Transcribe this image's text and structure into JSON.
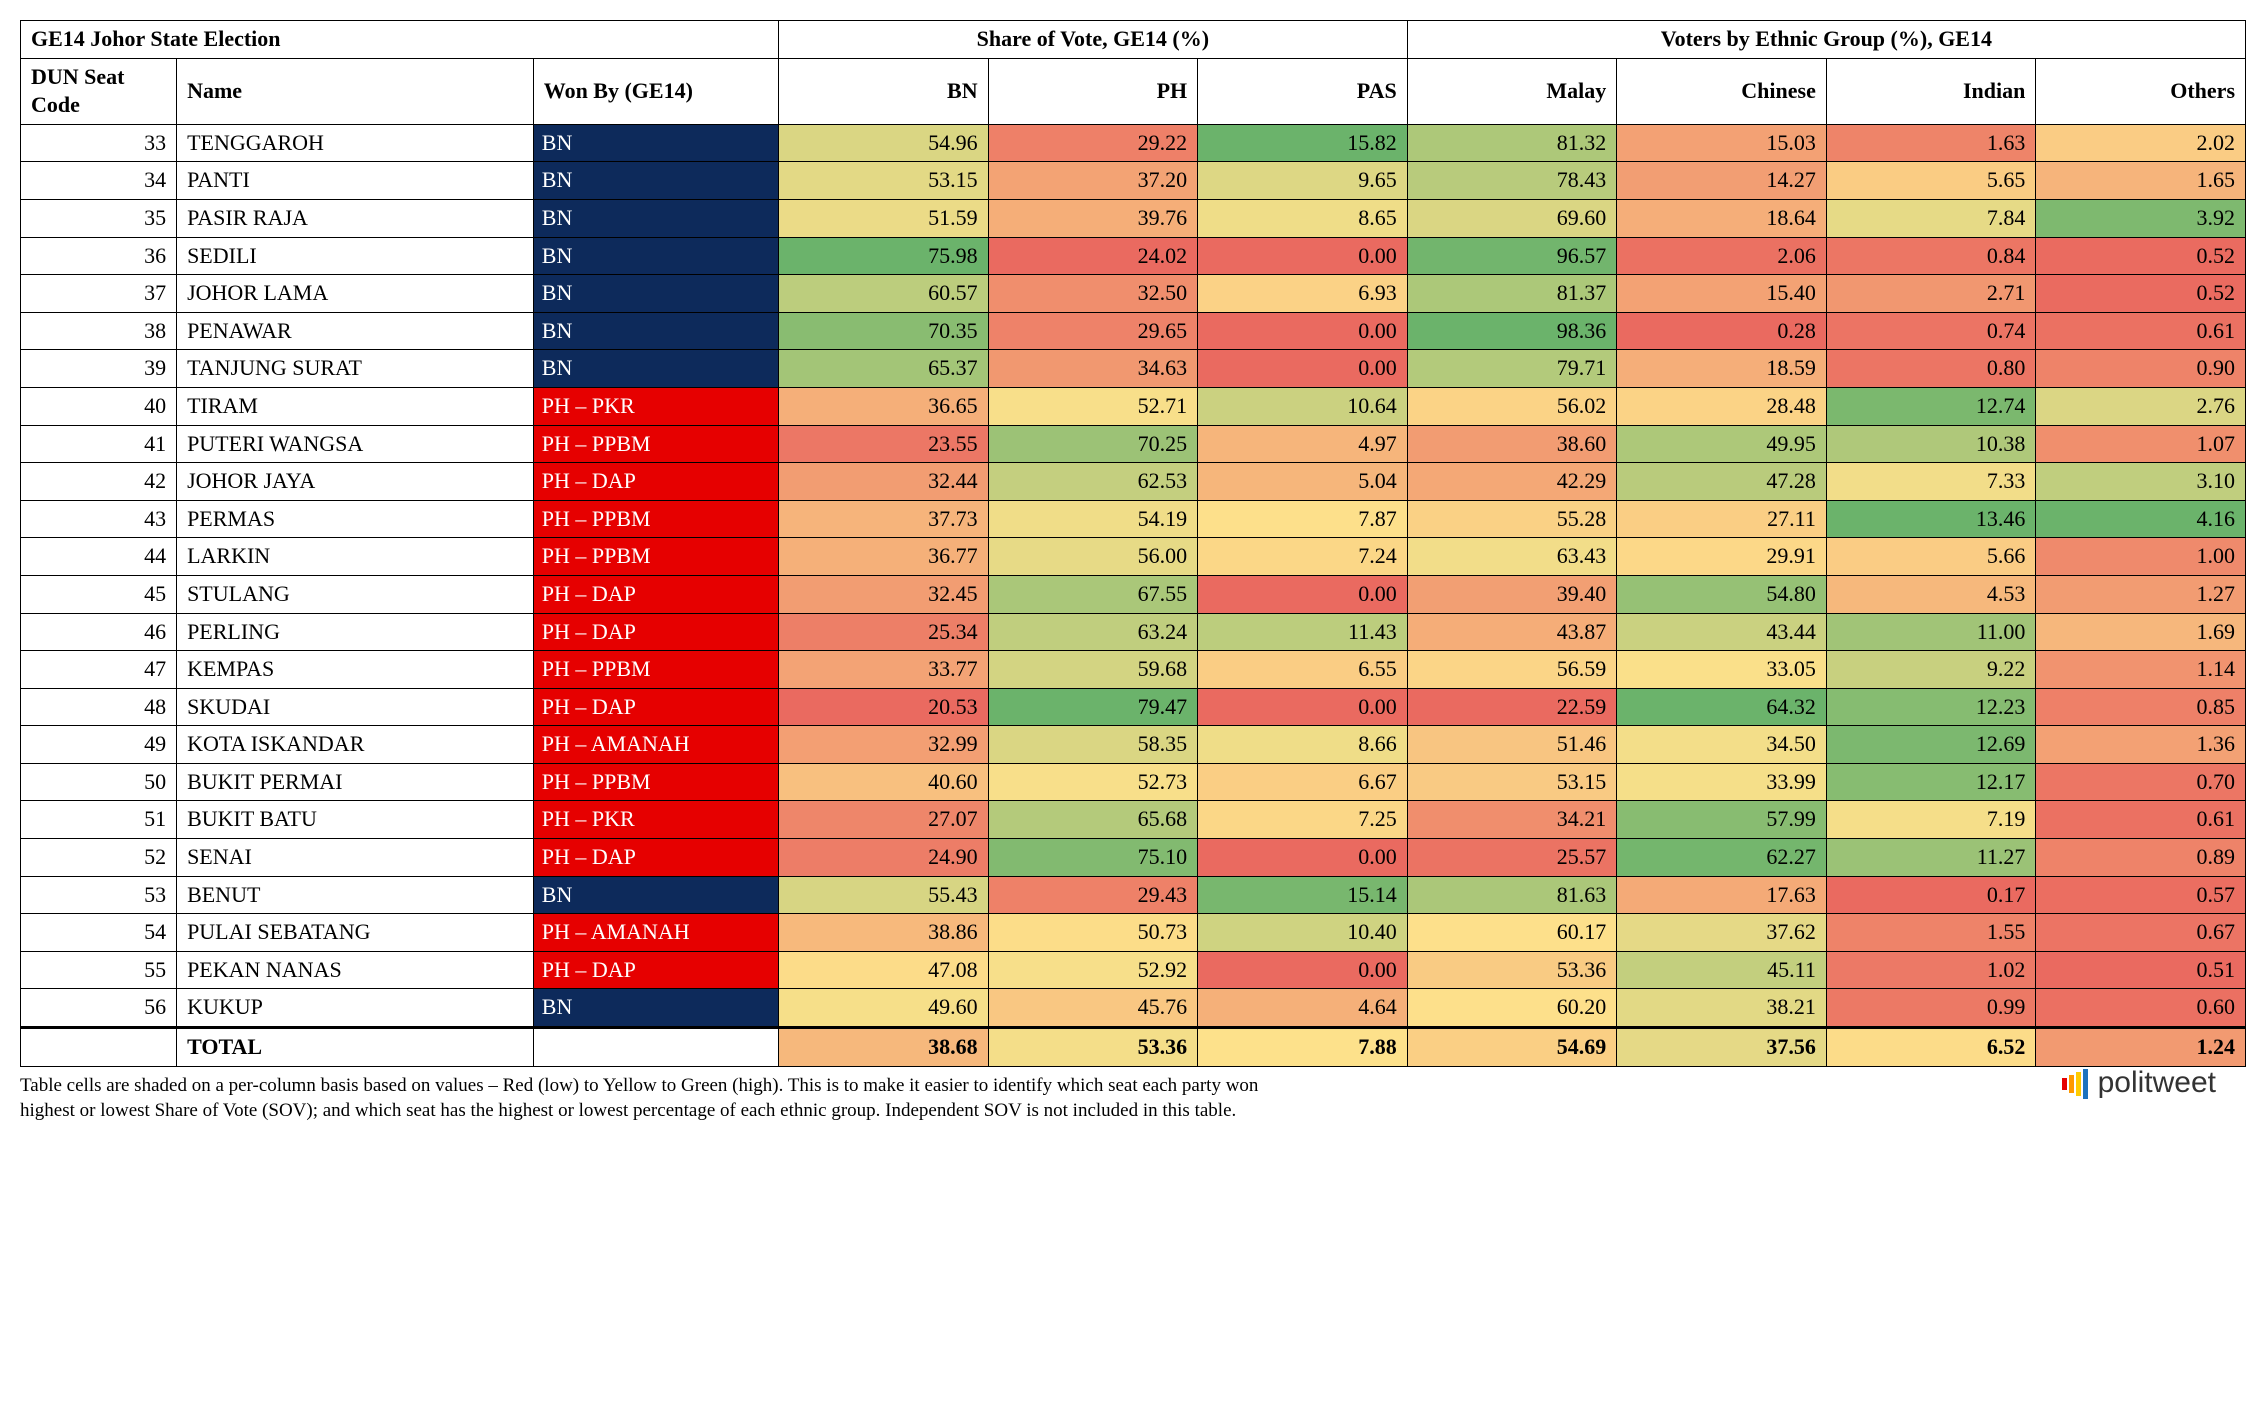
{
  "title": "GE14 Johor State Election",
  "group_share": "Share of Vote, GE14 (%)",
  "group_ethnic": "Voters by Ethnic Group (%), GE14",
  "headers": {
    "code": "DUN Seat Code",
    "name": "Name",
    "won": "Won By (GE14)",
    "bn": "BN",
    "ph": "PH",
    "pas": "PAS",
    "malay": "Malay",
    "chinese": "Chinese",
    "indian": "Indian",
    "others": "Others"
  },
  "won_styles": {
    "BN": "won-bn",
    "PH – PKR": "won-ph",
    "PH – PPBM": "won-ph",
    "PH – DAP": "won-ph",
    "PH – AMANAH": "won-ph"
  },
  "heatmap": {
    "low": "#ea6a60",
    "mid": "#fde18b",
    "high": "#6bb36b"
  },
  "columns_numeric": [
    "bn",
    "ph",
    "pas",
    "malay",
    "chinese",
    "indian",
    "others"
  ],
  "rows": [
    {
      "code": 33,
      "name": "TENGGAROH",
      "won": "BN",
      "bn": 54.96,
      "ph": 29.22,
      "pas": 15.82,
      "malay": 81.32,
      "chinese": 15.03,
      "indian": 1.63,
      "others": 2.02
    },
    {
      "code": 34,
      "name": "PANTI",
      "won": "BN",
      "bn": 53.15,
      "ph": 37.2,
      "pas": 9.65,
      "malay": 78.43,
      "chinese": 14.27,
      "indian": 5.65,
      "others": 1.65
    },
    {
      "code": 35,
      "name": "PASIR RAJA",
      "won": "BN",
      "bn": 51.59,
      "ph": 39.76,
      "pas": 8.65,
      "malay": 69.6,
      "chinese": 18.64,
      "indian": 7.84,
      "others": 3.92
    },
    {
      "code": 36,
      "name": "SEDILI",
      "won": "BN",
      "bn": 75.98,
      "ph": 24.02,
      "pas": 0.0,
      "malay": 96.57,
      "chinese": 2.06,
      "indian": 0.84,
      "others": 0.52
    },
    {
      "code": 37,
      "name": "JOHOR LAMA",
      "won": "BN",
      "bn": 60.57,
      "ph": 32.5,
      "pas": 6.93,
      "malay": 81.37,
      "chinese": 15.4,
      "indian": 2.71,
      "others": 0.52
    },
    {
      "code": 38,
      "name": "PENAWAR",
      "won": "BN",
      "bn": 70.35,
      "ph": 29.65,
      "pas": 0.0,
      "malay": 98.36,
      "chinese": 0.28,
      "indian": 0.74,
      "others": 0.61
    },
    {
      "code": 39,
      "name": "TANJUNG SURAT",
      "won": "BN",
      "bn": 65.37,
      "ph": 34.63,
      "pas": 0.0,
      "malay": 79.71,
      "chinese": 18.59,
      "indian": 0.8,
      "others": 0.9
    },
    {
      "code": 40,
      "name": "TIRAM",
      "won": "PH – PKR",
      "bn": 36.65,
      "ph": 52.71,
      "pas": 10.64,
      "malay": 56.02,
      "chinese": 28.48,
      "indian": 12.74,
      "others": 2.76
    },
    {
      "code": 41,
      "name": "PUTERI WANGSA",
      "won": "PH – PPBM",
      "bn": 23.55,
      "ph": 70.25,
      "pas": 4.97,
      "malay": 38.6,
      "chinese": 49.95,
      "indian": 10.38,
      "others": 1.07
    },
    {
      "code": 42,
      "name": "JOHOR JAYA",
      "won": "PH – DAP",
      "bn": 32.44,
      "ph": 62.53,
      "pas": 5.04,
      "malay": 42.29,
      "chinese": 47.28,
      "indian": 7.33,
      "others": 3.1
    },
    {
      "code": 43,
      "name": "PERMAS",
      "won": "PH – PPBM",
      "bn": 37.73,
      "ph": 54.19,
      "pas": 7.87,
      "malay": 55.28,
      "chinese": 27.11,
      "indian": 13.46,
      "others": 4.16
    },
    {
      "code": 44,
      "name": "LARKIN",
      "won": "PH – PPBM",
      "bn": 36.77,
      "ph": 56.0,
      "pas": 7.24,
      "malay": 63.43,
      "chinese": 29.91,
      "indian": 5.66,
      "others": 1.0
    },
    {
      "code": 45,
      "name": "STULANG",
      "won": "PH – DAP",
      "bn": 32.45,
      "ph": 67.55,
      "pas": 0.0,
      "malay": 39.4,
      "chinese": 54.8,
      "indian": 4.53,
      "others": 1.27
    },
    {
      "code": 46,
      "name": "PERLING",
      "won": "PH – DAP",
      "bn": 25.34,
      "ph": 63.24,
      "pas": 11.43,
      "malay": 43.87,
      "chinese": 43.44,
      "indian": 11.0,
      "others": 1.69
    },
    {
      "code": 47,
      "name": "KEMPAS",
      "won": "PH – PPBM",
      "bn": 33.77,
      "ph": 59.68,
      "pas": 6.55,
      "malay": 56.59,
      "chinese": 33.05,
      "indian": 9.22,
      "others": 1.14
    },
    {
      "code": 48,
      "name": "SKUDAI",
      "won": "PH – DAP",
      "bn": 20.53,
      "ph": 79.47,
      "pas": 0.0,
      "malay": 22.59,
      "chinese": 64.32,
      "indian": 12.23,
      "others": 0.85
    },
    {
      "code": 49,
      "name": "KOTA ISKANDAR",
      "won": "PH – AMANAH",
      "bn": 32.99,
      "ph": 58.35,
      "pas": 8.66,
      "malay": 51.46,
      "chinese": 34.5,
      "indian": 12.69,
      "others": 1.36
    },
    {
      "code": 50,
      "name": "BUKIT PERMAI",
      "won": "PH – PPBM",
      "bn": 40.6,
      "ph": 52.73,
      "pas": 6.67,
      "malay": 53.15,
      "chinese": 33.99,
      "indian": 12.17,
      "others": 0.7
    },
    {
      "code": 51,
      "name": "BUKIT BATU",
      "won": "PH – PKR",
      "bn": 27.07,
      "ph": 65.68,
      "pas": 7.25,
      "malay": 34.21,
      "chinese": 57.99,
      "indian": 7.19,
      "others": 0.61
    },
    {
      "code": 52,
      "name": "SENAI",
      "won": "PH – DAP",
      "bn": 24.9,
      "ph": 75.1,
      "pas": 0.0,
      "malay": 25.57,
      "chinese": 62.27,
      "indian": 11.27,
      "others": 0.89
    },
    {
      "code": 53,
      "name": "BENUT",
      "won": "BN",
      "bn": 55.43,
      "ph": 29.43,
      "pas": 15.14,
      "malay": 81.63,
      "chinese": 17.63,
      "indian": 0.17,
      "others": 0.57
    },
    {
      "code": 54,
      "name": "PULAI SEBATANG",
      "won": "PH – AMANAH",
      "bn": 38.86,
      "ph": 50.73,
      "pas": 10.4,
      "malay": 60.17,
      "chinese": 37.62,
      "indian": 1.55,
      "others": 0.67
    },
    {
      "code": 55,
      "name": "PEKAN NANAS",
      "won": "PH – DAP",
      "bn": 47.08,
      "ph": 52.92,
      "pas": 0.0,
      "malay": 53.36,
      "chinese": 45.11,
      "indian": 1.02,
      "others": 0.51
    },
    {
      "code": 56,
      "name": "KUKUP",
      "won": "BN",
      "bn": 49.6,
      "ph": 45.76,
      "pas": 4.64,
      "malay": 60.2,
      "chinese": 38.21,
      "indian": 0.99,
      "others": 0.6
    }
  ],
  "total": {
    "label": "TOTAL",
    "bn": 38.68,
    "ph": 53.36,
    "pas": 7.88,
    "malay": 54.69,
    "chinese": 37.56,
    "indian": 6.52,
    "others": 1.24
  },
  "footnote_line1": "Table cells are shaded on a per-column basis based on values – Red (low) to Yellow to Green (high). This is to make it easier to identify which seat each party won",
  "footnote_line2": "highest or lowest Share of Vote (SOV); and which seat has the highest or lowest percentage of each ethnic group. Independent SOV is not included in this table.",
  "brand": "politweet",
  "brand_bar_colors": [
    "#e60000",
    "#ff9900",
    "#ffcc00",
    "#1e73be"
  ]
}
